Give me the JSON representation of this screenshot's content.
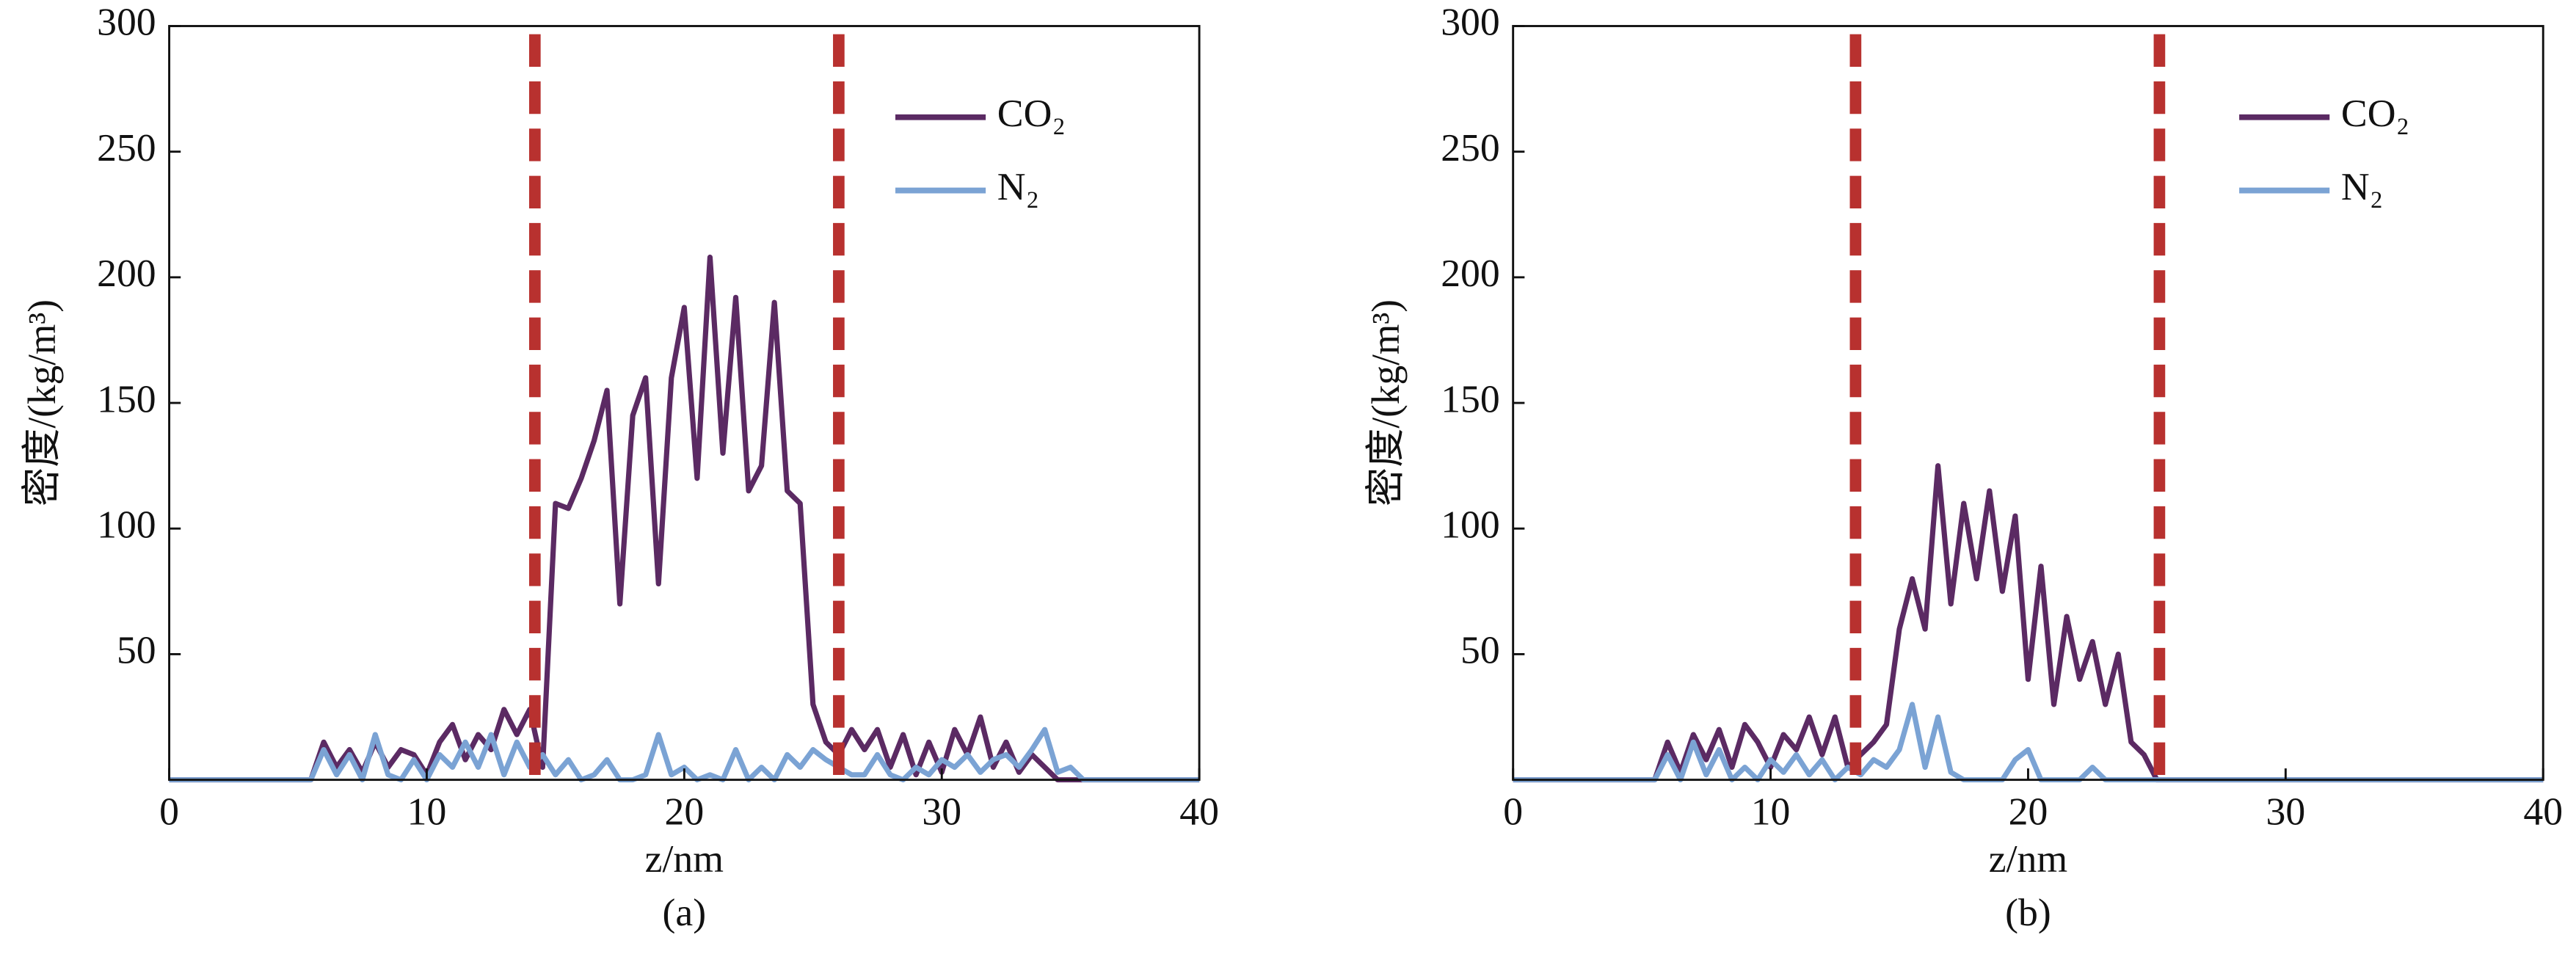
{
  "chart_data": [
    {
      "type": "line",
      "caption": "(a)",
      "xlabel": "z/nm",
      "ylabel": "密度/(kg/m³)",
      "x": [
        0,
        5.5,
        6,
        6.5,
        7,
        7.5,
        8,
        8.5,
        9,
        9.5,
        10,
        10.5,
        11,
        11.5,
        12,
        12.5,
        13,
        13.5,
        14,
        14.5,
        15,
        15.5,
        16,
        16.5,
        17,
        17.5,
        18,
        18.5,
        19,
        19.5,
        20,
        20.5,
        21,
        21.5,
        22,
        22.5,
        23,
        23.5,
        24,
        24.5,
        25,
        25.5,
        26,
        26.5,
        27,
        27.5,
        28,
        28.5,
        29,
        29.5,
        30,
        30.5,
        31,
        31.5,
        32,
        32.5,
        33,
        33.5,
        34,
        34.5,
        35,
        35.5,
        40
      ],
      "series": [
        {
          "name": "CO₂",
          "color": "#5b2a63",
          "values": [
            0,
            0,
            15,
            5,
            12,
            3,
            15,
            5,
            12,
            10,
            2,
            15,
            22,
            8,
            18,
            12,
            28,
            18,
            28,
            5,
            110,
            108,
            120,
            135,
            155,
            70,
            145,
            160,
            78,
            160,
            188,
            120,
            208,
            130,
            192,
            115,
            125,
            190,
            115,
            110,
            30,
            15,
            10,
            20,
            12,
            20,
            5,
            18,
            2,
            15,
            3,
            20,
            10,
            25,
            5,
            15,
            3,
            10,
            5,
            0,
            0,
            0,
            0
          ]
        },
        {
          "name": "N₂",
          "color": "#7ba3d4",
          "values": [
            0,
            0,
            12,
            2,
            10,
            0,
            18,
            2,
            0,
            8,
            0,
            10,
            5,
            15,
            5,
            18,
            2,
            15,
            5,
            10,
            2,
            8,
            0,
            2,
            8,
            0,
            0,
            2,
            18,
            2,
            5,
            0,
            2,
            0,
            12,
            0,
            5,
            0,
            10,
            5,
            12,
            8,
            5,
            2,
            2,
            10,
            2,
            0,
            5,
            2,
            8,
            5,
            10,
            3,
            8,
            10,
            5,
            12,
            20,
            3,
            5,
            0,
            0
          ]
        }
      ],
      "xlim": [
        0,
        40
      ],
      "ylim": [
        0,
        300
      ],
      "xticks": [
        0,
        10,
        20,
        30,
        40
      ],
      "yticks": [
        50,
        100,
        150,
        200,
        250,
        300
      ],
      "vlines": {
        "values": [
          14.2,
          26
        ],
        "color": "#b8312f"
      },
      "legend": "upper right"
    },
    {
      "type": "line",
      "caption": "(b)",
      "xlabel": "z/nm",
      "ylabel": "密度/(kg/m³)",
      "x": [
        0,
        5.5,
        6,
        6.5,
        7,
        7.5,
        8,
        8.5,
        9,
        9.5,
        10,
        10.5,
        11,
        11.5,
        12,
        12.5,
        13,
        13.5,
        14,
        14.5,
        15,
        15.5,
        16,
        16.5,
        17,
        17.5,
        18,
        18.5,
        19,
        19.5,
        20,
        20.5,
        21,
        21.5,
        22,
        22.5,
        23,
        23.5,
        24,
        24.5,
        25,
        25.5,
        26,
        26.5,
        27,
        27.5,
        28,
        28.5,
        29,
        29.5,
        30,
        30.5,
        31,
        31.5,
        32,
        32.5,
        33,
        33.5,
        34,
        34.5,
        35,
        35.5,
        40
      ],
      "series": [
        {
          "name": "CO₂",
          "color": "#5b2a63",
          "values": [
            0,
            0,
            15,
            3,
            18,
            8,
            20,
            5,
            22,
            15,
            5,
            18,
            12,
            25,
            10,
            25,
            5,
            10,
            15,
            22,
            60,
            80,
            60,
            125,
            70,
            110,
            80,
            115,
            75,
            105,
            40,
            85,
            30,
            65,
            40,
            55,
            30,
            50,
            15,
            10,
            0,
            0,
            0,
            0,
            0,
            0,
            0,
            0,
            0,
            0,
            0,
            0,
            0,
            0,
            0,
            0,
            0,
            0,
            0,
            0,
            0,
            0,
            0
          ]
        },
        {
          "name": "N₂",
          "color": "#7ba3d4",
          "values": [
            0,
            0,
            10,
            0,
            15,
            2,
            12,
            0,
            5,
            0,
            8,
            3,
            10,
            2,
            8,
            0,
            5,
            2,
            8,
            5,
            12,
            30,
            5,
            25,
            3,
            0,
            0,
            0,
            0,
            8,
            12,
            0,
            0,
            0,
            0,
            5,
            0,
            0,
            0,
            0,
            0,
            0,
            0,
            0,
            0,
            0,
            0,
            0,
            0,
            0,
            0,
            0,
            0,
            0,
            0,
            0,
            0,
            0,
            0,
            0,
            0,
            0,
            0
          ]
        }
      ],
      "xlim": [
        0,
        40
      ],
      "ylim": [
        0,
        300
      ],
      "xticks": [
        0,
        10,
        20,
        30,
        40
      ],
      "yticks": [
        50,
        100,
        150,
        200,
        250,
        300
      ],
      "vlines": {
        "values": [
          13.3,
          25.1
        ],
        "color": "#b8312f"
      },
      "legend": "upper right"
    }
  ]
}
